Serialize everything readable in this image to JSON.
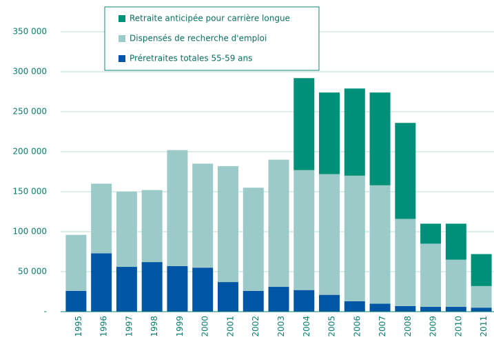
{
  "chart_data": {
    "type": "stacked_bar",
    "categories": [
      "1995",
      "1996",
      "1997",
      "1998",
      "1999",
      "2000",
      "2001",
      "2002",
      "2003",
      "2004",
      "2005",
      "2006",
      "2007",
      "2008",
      "2009",
      "2010",
      "2011"
    ],
    "series": [
      {
        "name": "Préretraites totales  55-59 ans",
        "color": "#0055a5",
        "values": [
          26000,
          73000,
          56000,
          62000,
          57000,
          55000,
          37000,
          26000,
          31000,
          27000,
          21000,
          13000,
          10000,
          7000,
          6000,
          6000,
          5000
        ]
      },
      {
        "name": "Dispensés de recherche d'emploi",
        "color": "#9ccac8",
        "values": [
          70000,
          87000,
          94000,
          90000,
          145000,
          130000,
          145000,
          129000,
          159000,
          150000,
          151000,
          157000,
          148000,
          109000,
          79000,
          59000,
          27000
        ]
      },
      {
        "name": "Retraite anticipée pour carrière longue",
        "color": "#00907a",
        "values": [
          0,
          0,
          0,
          0,
          0,
          0,
          0,
          0,
          0,
          115000,
          102000,
          109000,
          116000,
          120000,
          25000,
          45000,
          40000
        ]
      }
    ],
    "ylim": [
      0,
      350000
    ],
    "yticks": [
      {
        "value": 0,
        "label": "-"
      },
      {
        "value": 50000,
        "label": "50 000"
      },
      {
        "value": 100000,
        "label": "100 000"
      },
      {
        "value": 150000,
        "label": "150 000"
      },
      {
        "value": 200000,
        "label": "200 000"
      },
      {
        "value": 250000,
        "label": "250 000"
      },
      {
        "value": 300000,
        "label": "300 000"
      },
      {
        "value": 350000,
        "label": "350 000"
      }
    ],
    "grid": true
  }
}
